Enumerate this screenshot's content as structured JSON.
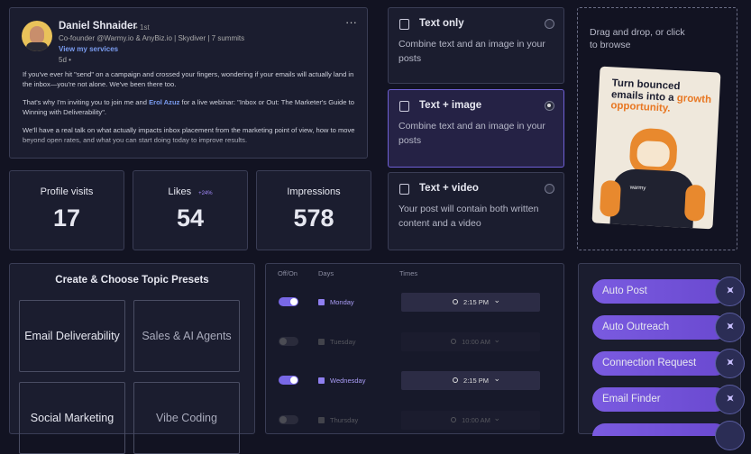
{
  "post": {
    "author": "Daniel Shnaider",
    "degree": "• 1st",
    "headline": "Co-founder @Warmy.io & AnyBiz.io | Skydiver | 7 summits",
    "link": "View my services",
    "time": "5d •",
    "paragraphs": [
      [
        "If you've ever hit \"send\" on a campaign and crossed your fingers, wondering if your emails will actually land in the inbox—you're not alone. We've been there too."
      ],
      [
        "That's why I'm inviting you to join me and ",
        "Erol Azuz",
        " for a live webinar: \"Inbox or Out: The Marketer's Guide to Winning with Deliverability\"."
      ],
      [
        "We'll have a real talk on what actually impacts inbox placement from the marketing point of view, how to move beyond open rates, and what you can start doing today to improve results."
      ]
    ]
  },
  "stats": [
    {
      "label": "Profile visits",
      "value": 17
    },
    {
      "label": "Likes",
      "value": 54,
      "change": "+24%"
    },
    {
      "label": "Impressions",
      "value": 578
    }
  ],
  "post_types": [
    {
      "title": "Text only",
      "description": "Combine text and an image in your posts",
      "selected": false
    },
    {
      "title": "Text + image",
      "description": "Combine text and an image in your posts",
      "selected": true
    },
    {
      "title": "Text + video",
      "description": "Your post will contain both written content and a video",
      "selected": false
    }
  ],
  "upload": {
    "hint": "Drag and drop, or click to browse",
    "headline": "Turn bounced emails into a ",
    "highlight": "growth opportunity.",
    "brand": "warmy"
  },
  "presets": {
    "title": "Create & Choose Topic Presets",
    "items": [
      "Email Deliverability",
      "Sales & AI Agents",
      "Social Marketing",
      "Vibe Coding"
    ]
  },
  "schedule": {
    "headers": [
      "Off/On",
      "Days",
      "Times"
    ],
    "rows": [
      {
        "on": true,
        "day": "Monday",
        "time": "2:15 PM"
      },
      {
        "on": false,
        "day": "Tuesday",
        "time": "10:00 AM"
      },
      {
        "on": true,
        "day": "Wednesday",
        "time": "2:15 PM"
      },
      {
        "on": false,
        "day": "Thursday",
        "time": "10:00 AM"
      }
    ]
  },
  "actions": [
    "Auto Post",
    "Auto Outreach",
    "Connection Request",
    "Email Finder"
  ]
}
